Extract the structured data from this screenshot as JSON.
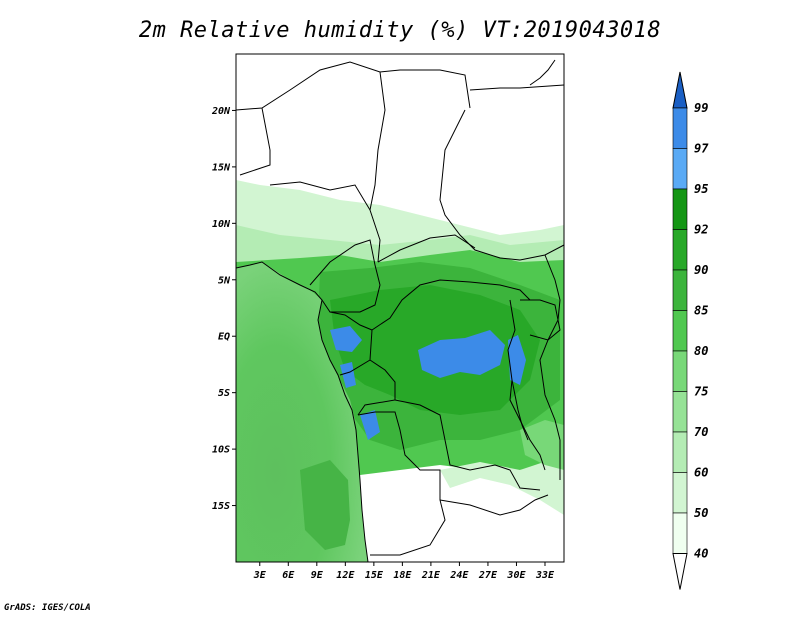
{
  "title": "2m Relative humidity (%) VT:2019043018",
  "credit": "GrADS: IGES/COLA",
  "map": {
    "lat_labels": [
      "20N",
      "15N",
      "10N",
      "5N",
      "EQ",
      "5S",
      "10S",
      "15S"
    ],
    "lat_values": [
      20,
      15,
      10,
      5,
      0,
      -5,
      -10,
      -15
    ],
    "lon_labels": [
      "3E",
      "6E",
      "9E",
      "12E",
      "15E",
      "18E",
      "21E",
      "24E",
      "27E",
      "30E",
      "33E"
    ],
    "lon_values": [
      3,
      6,
      9,
      12,
      15,
      18,
      21,
      24,
      27,
      30,
      33
    ],
    "lon_range": [
      0.5,
      35
    ],
    "lat_range": [
      -20,
      25
    ]
  },
  "colorbar": {
    "levels": [
      "99",
      "97",
      "95",
      "92",
      "90",
      "85",
      "80",
      "75",
      "70",
      "60",
      "50",
      "40"
    ],
    "colors": [
      "#1e6fd6",
      "#3c8be8",
      "#5aaaf5",
      "#149614",
      "#28a828",
      "#3cb43c",
      "#50c850",
      "#78d878",
      "#96e296",
      "#b4ecb4",
      "#d2f5d2",
      "#f0fff0"
    ],
    "top_color": "#1a5fc4",
    "bottom_color": "#ffffff"
  }
}
